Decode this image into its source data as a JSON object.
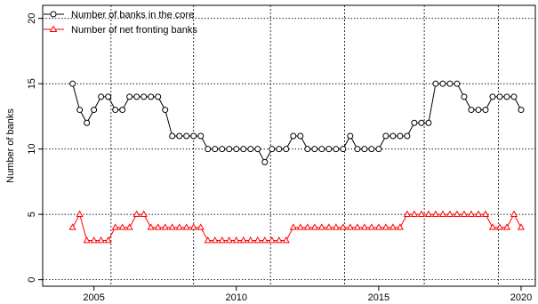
{
  "chart_data": {
    "type": "line",
    "title": "",
    "xlabel": "",
    "ylabel": "Number of banks",
    "xlim": [
      2003.2,
      2020.5
    ],
    "ylim": [
      -0.5,
      21
    ],
    "x_ticks": [
      2005,
      2010,
      2015,
      2020
    ],
    "y_ticks": [
      0,
      5,
      10,
      15,
      20
    ],
    "grid": true,
    "grid_style": "dotted",
    "vertical_reference_lines": [
      2005.6,
      2008.5,
      2011.2,
      2013.8,
      2016.6,
      2019.2
    ],
    "legend_position": "top-left",
    "colors": {
      "core": "#000000",
      "fronting": "#ff0000"
    },
    "series": [
      {
        "name": "Number of banks in the core",
        "marker": "circle",
        "x": [
          2004.25,
          2004.5,
          2004.75,
          2005.0,
          2005.25,
          2005.5,
          2005.75,
          2006.0,
          2006.25,
          2006.5,
          2006.75,
          2007.0,
          2007.25,
          2007.5,
          2007.75,
          2008.0,
          2008.25,
          2008.5,
          2008.75,
          2009.0,
          2009.25,
          2009.5,
          2009.75,
          2010.0,
          2010.25,
          2010.5,
          2010.75,
          2011.0,
          2011.25,
          2011.5,
          2011.75,
          2012.0,
          2012.25,
          2012.5,
          2012.75,
          2013.0,
          2013.25,
          2013.5,
          2013.75,
          2014.0,
          2014.25,
          2014.5,
          2014.75,
          2015.0,
          2015.25,
          2015.5,
          2015.75,
          2016.0,
          2016.25,
          2016.5,
          2016.75,
          2017.0,
          2017.25,
          2017.5,
          2017.75,
          2018.0,
          2018.25,
          2018.5,
          2018.75,
          2019.0,
          2019.25,
          2019.5,
          2019.75,
          2020.0
        ],
        "values": [
          15,
          13,
          12,
          13,
          14,
          14,
          13,
          13,
          14,
          14,
          14,
          14,
          14,
          13,
          11,
          11,
          11,
          11,
          11,
          10,
          10,
          10,
          10,
          10,
          10,
          10,
          10,
          9,
          10,
          10,
          10,
          11,
          11,
          10,
          10,
          10,
          10,
          10,
          10,
          11,
          10,
          10,
          10,
          10,
          11,
          11,
          11,
          11,
          12,
          12,
          12,
          15,
          15,
          15,
          15,
          14,
          13,
          13,
          13,
          14,
          14,
          14,
          14,
          13
        ]
      },
      {
        "name": "Number of net fronting banks",
        "marker": "triangle",
        "x": [
          2004.25,
          2004.5,
          2004.75,
          2005.0,
          2005.25,
          2005.5,
          2005.75,
          2006.0,
          2006.25,
          2006.5,
          2006.75,
          2007.0,
          2007.25,
          2007.5,
          2007.75,
          2008.0,
          2008.25,
          2008.5,
          2008.75,
          2009.0,
          2009.25,
          2009.5,
          2009.75,
          2010.0,
          2010.25,
          2010.5,
          2010.75,
          2011.0,
          2011.25,
          2011.5,
          2011.75,
          2012.0,
          2012.25,
          2012.5,
          2012.75,
          2013.0,
          2013.25,
          2013.5,
          2013.75,
          2014.0,
          2014.25,
          2014.5,
          2014.75,
          2015.0,
          2015.25,
          2015.5,
          2015.75,
          2016.0,
          2016.25,
          2016.5,
          2016.75,
          2017.0,
          2017.25,
          2017.5,
          2017.75,
          2018.0,
          2018.25,
          2018.5,
          2018.75,
          2019.0,
          2019.25,
          2019.5,
          2019.75,
          2020.0
        ],
        "values": [
          4,
          5,
          3,
          3,
          3,
          3,
          4,
          4,
          4,
          5,
          5,
          4,
          4,
          4,
          4,
          4,
          4,
          4,
          4,
          3,
          3,
          3,
          3,
          3,
          3,
          3,
          3,
          3,
          3,
          3,
          3,
          4,
          4,
          4,
          4,
          4,
          4,
          4,
          4,
          4,
          4,
          4,
          4,
          4,
          4,
          4,
          4,
          5,
          5,
          5,
          5,
          5,
          5,
          5,
          5,
          5,
          5,
          5,
          5,
          4,
          4,
          4,
          5,
          4
        ]
      }
    ]
  }
}
